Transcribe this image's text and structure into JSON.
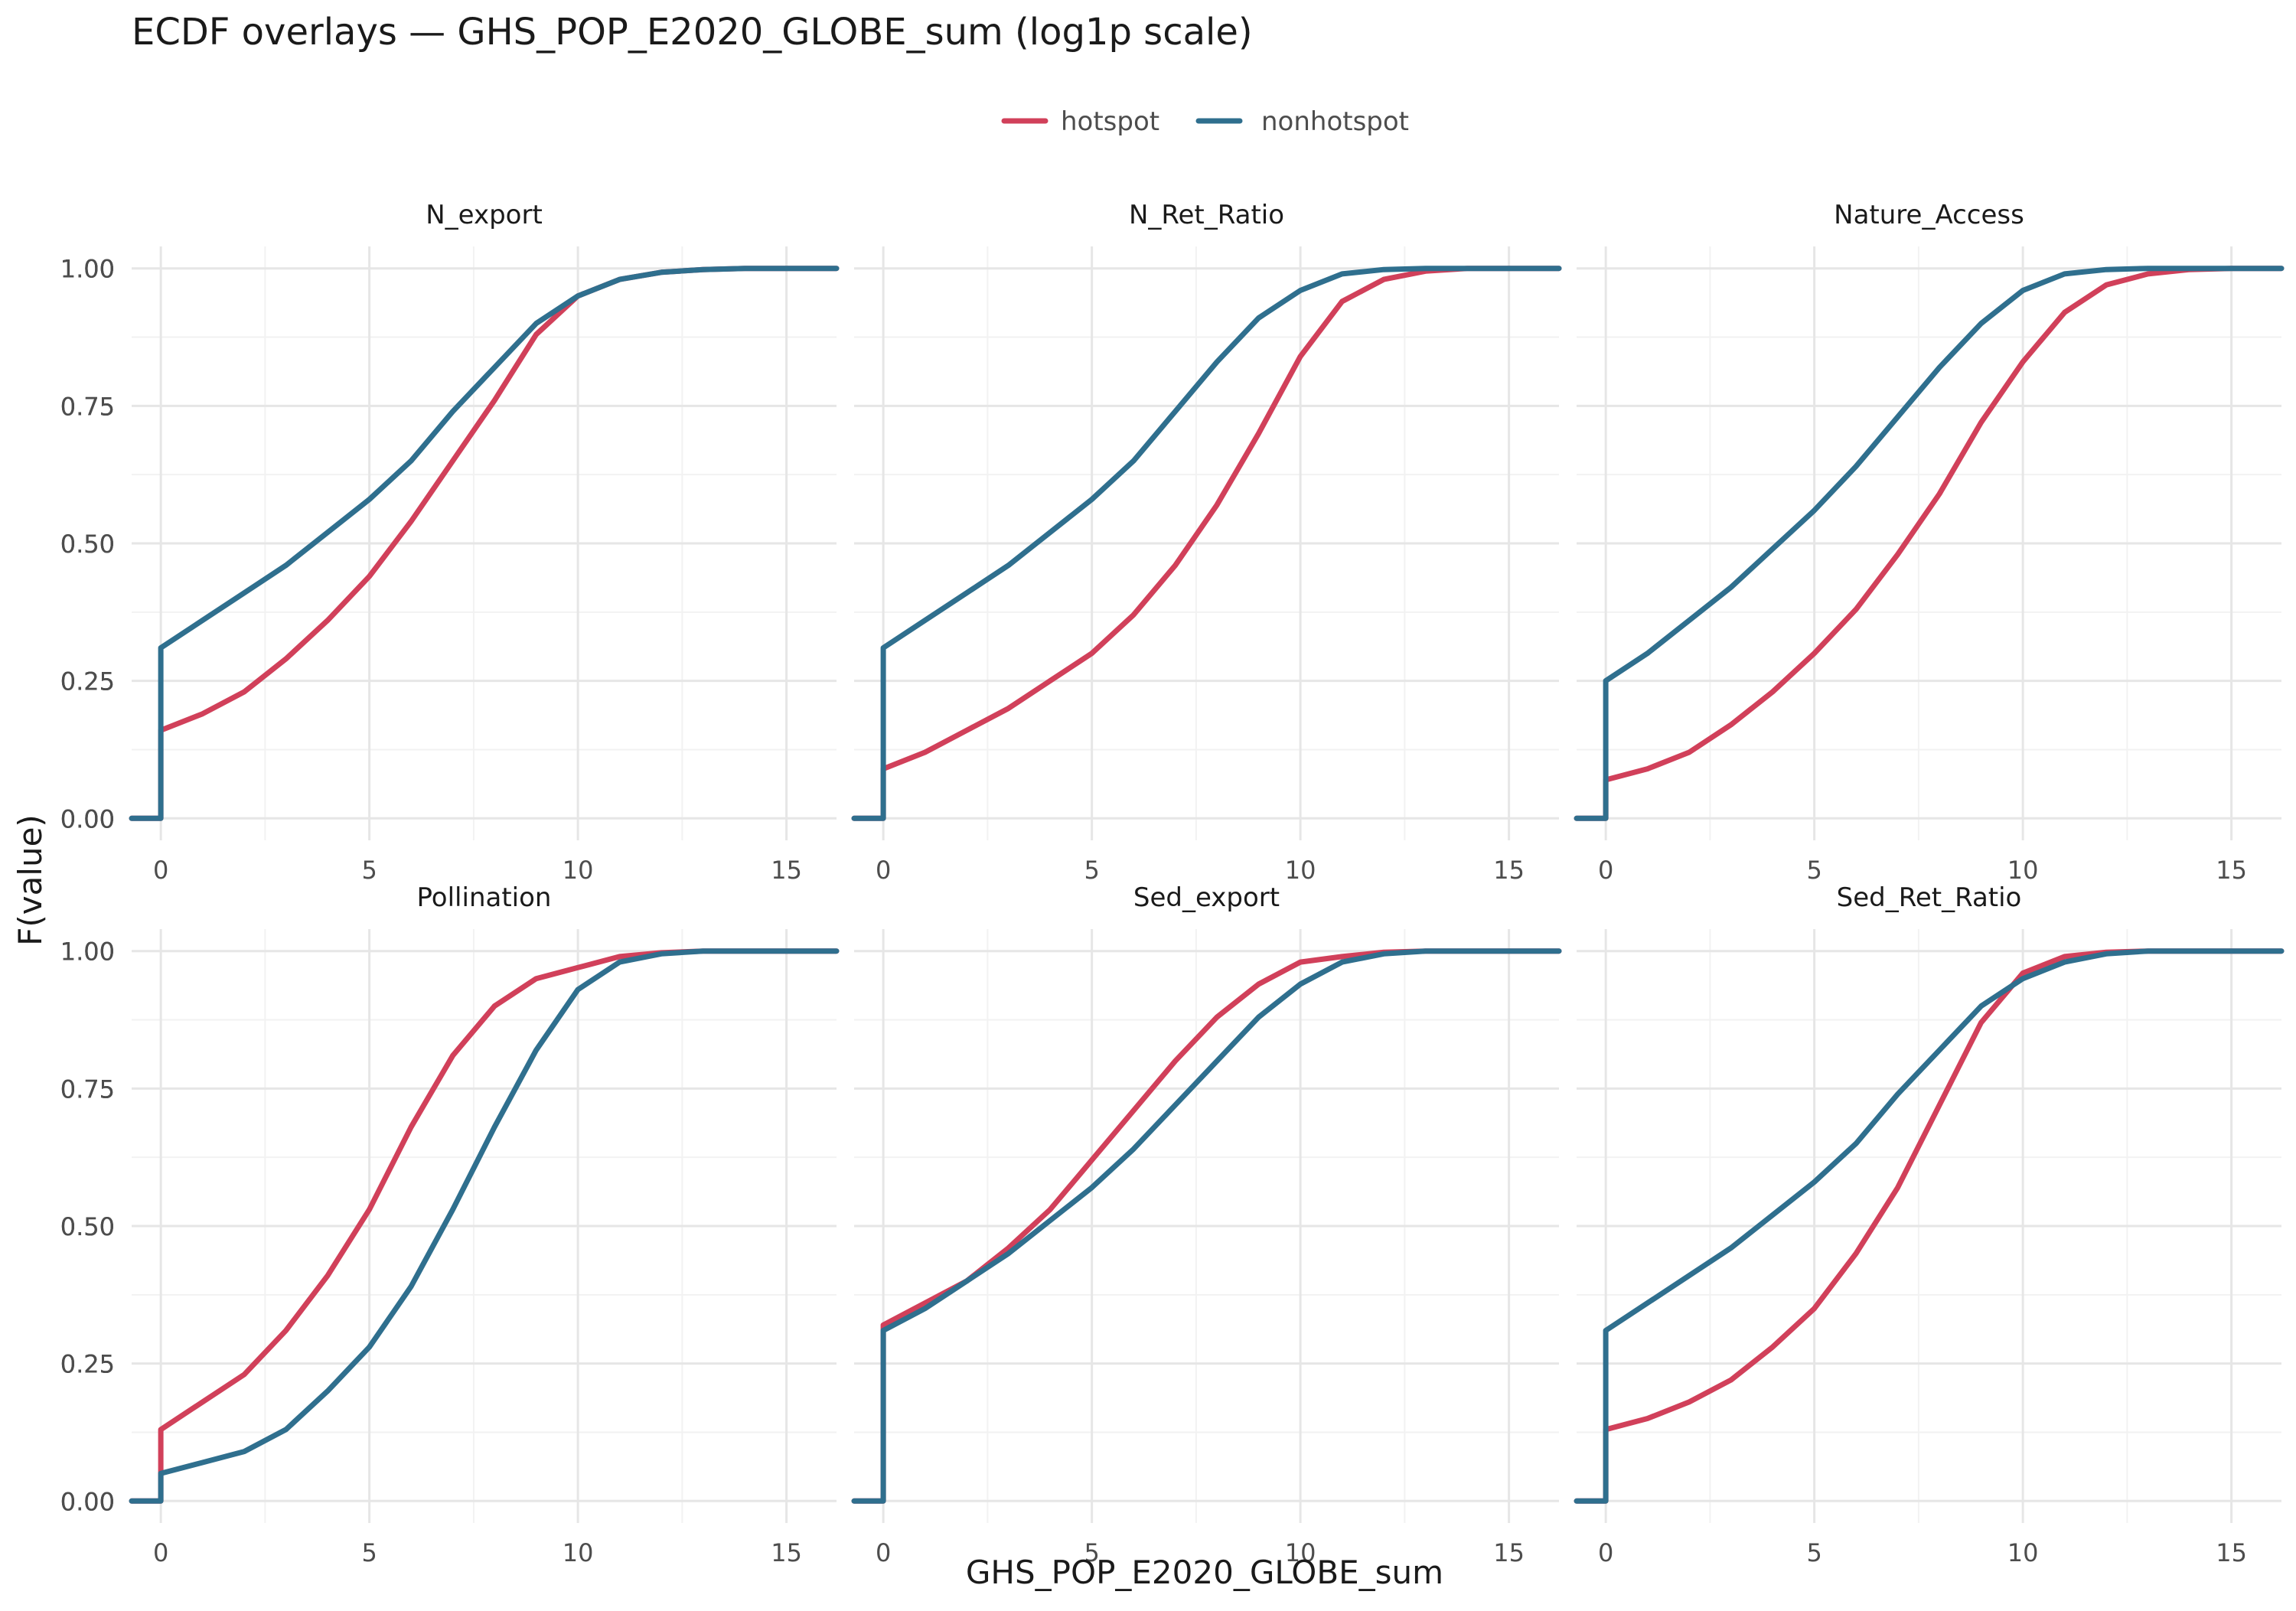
{
  "title": "ECDF overlays — GHS_POP_E2020_GLOBE_sum (log1p scale)",
  "legend": {
    "placement": "top-center",
    "items": [
      {
        "label": "hotspot",
        "color": "#D1405A"
      },
      {
        "label": "nonhotspot",
        "color": "#2F6F8E"
      }
    ]
  },
  "colors": {
    "hotspot": "#D1405A",
    "nonhotspot": "#2F6F8E",
    "grid_major": "#E6E6E6",
    "grid_minor": "#F2F2F2",
    "text": "#4D4D4D",
    "title": "#1A1A1A"
  },
  "axes": {
    "xlabel": "GHS_POP_E2020_GLOBE_sum",
    "ylabel": "F(value)",
    "x_ticks": [
      "0",
      "5",
      "10",
      "15"
    ],
    "y_ticks": [
      "0.00",
      "0.25",
      "0.50",
      "0.75",
      "1.00"
    ]
  },
  "chart_data": [
    {
      "type": "line",
      "panel": "N_export",
      "xlim": [
        -0.7,
        16.2
      ],
      "ylim": [
        -0.04,
        1.04
      ],
      "grid": true,
      "series": [
        {
          "name": "hotspot",
          "color": "#D1405A",
          "x": [
            -0.7,
            0,
            0,
            1,
            2,
            3,
            4,
            5,
            6,
            7,
            8,
            9,
            10,
            11,
            12,
            13,
            14,
            15,
            16.2
          ],
          "y": [
            0,
            0,
            0.16,
            0.19,
            0.23,
            0.29,
            0.36,
            0.44,
            0.54,
            0.65,
            0.76,
            0.88,
            0.95,
            0.98,
            0.993,
            0.998,
            1,
            1,
            1
          ]
        },
        {
          "name": "nonhotspot",
          "color": "#2F6F8E",
          "x": [
            -0.7,
            0,
            0,
            1,
            2,
            3,
            4,
            5,
            6,
            7,
            8,
            9,
            10,
            11,
            12,
            13,
            14,
            15,
            16.2
          ],
          "y": [
            0,
            0,
            0.31,
            0.36,
            0.41,
            0.46,
            0.52,
            0.58,
            0.65,
            0.74,
            0.82,
            0.9,
            0.95,
            0.98,
            0.993,
            0.998,
            1,
            1,
            1
          ]
        }
      ]
    },
    {
      "type": "line",
      "panel": "N_Ret_Ratio",
      "xlim": [
        -0.7,
        16.2
      ],
      "ylim": [
        -0.04,
        1.04
      ],
      "grid": true,
      "series": [
        {
          "name": "hotspot",
          "color": "#D1405A",
          "x": [
            -0.7,
            0,
            0,
            1,
            2,
            3,
            4,
            5,
            6,
            7,
            8,
            9,
            10,
            11,
            12,
            13,
            14,
            15,
            16.2
          ],
          "y": [
            0,
            0,
            0.09,
            0.12,
            0.16,
            0.2,
            0.25,
            0.3,
            0.37,
            0.46,
            0.57,
            0.7,
            0.84,
            0.94,
            0.98,
            0.995,
            1,
            1,
            1
          ]
        },
        {
          "name": "nonhotspot",
          "color": "#2F6F8E",
          "x": [
            -0.7,
            0,
            0,
            1,
            2,
            3,
            4,
            5,
            6,
            7,
            8,
            9,
            10,
            11,
            12,
            13,
            14,
            15,
            16.2
          ],
          "y": [
            0,
            0,
            0.31,
            0.36,
            0.41,
            0.46,
            0.52,
            0.58,
            0.65,
            0.74,
            0.83,
            0.91,
            0.96,
            0.99,
            0.998,
            1,
            1,
            1,
            1
          ]
        }
      ]
    },
    {
      "type": "line",
      "panel": "Nature_Access",
      "xlim": [
        -0.7,
        16.2
      ],
      "ylim": [
        -0.04,
        1.04
      ],
      "grid": true,
      "series": [
        {
          "name": "hotspot",
          "color": "#D1405A",
          "x": [
            -0.7,
            0,
            0,
            1,
            2,
            3,
            4,
            5,
            6,
            7,
            8,
            9,
            10,
            11,
            12,
            13,
            14,
            15,
            16.2
          ],
          "y": [
            0,
            0,
            0.07,
            0.09,
            0.12,
            0.17,
            0.23,
            0.3,
            0.38,
            0.48,
            0.59,
            0.72,
            0.83,
            0.92,
            0.97,
            0.99,
            0.998,
            1,
            1
          ]
        },
        {
          "name": "nonhotspot",
          "color": "#2F6F8E",
          "x": [
            -0.7,
            0,
            0,
            1,
            2,
            3,
            4,
            5,
            6,
            7,
            8,
            9,
            10,
            11,
            12,
            13,
            14,
            15,
            16.2
          ],
          "y": [
            0,
            0,
            0.25,
            0.3,
            0.36,
            0.42,
            0.49,
            0.56,
            0.64,
            0.73,
            0.82,
            0.9,
            0.96,
            0.99,
            0.998,
            1,
            1,
            1,
            1
          ]
        }
      ]
    },
    {
      "type": "line",
      "panel": "Pollination",
      "xlim": [
        -0.7,
        16.2
      ],
      "ylim": [
        -0.04,
        1.04
      ],
      "grid": true,
      "series": [
        {
          "name": "hotspot",
          "color": "#D1405A",
          "x": [
            -0.7,
            0,
            0,
            1,
            2,
            3,
            4,
            5,
            6,
            7,
            8,
            9,
            10,
            11,
            12,
            13,
            14,
            15,
            16.2
          ],
          "y": [
            0,
            0,
            0.13,
            0.18,
            0.23,
            0.31,
            0.41,
            0.53,
            0.68,
            0.81,
            0.9,
            0.95,
            0.97,
            0.99,
            0.997,
            1,
            1,
            1,
            1
          ]
        },
        {
          "name": "nonhotspot",
          "color": "#2F6F8E",
          "x": [
            -0.7,
            0,
            0,
            1,
            2,
            3,
            4,
            5,
            6,
            7,
            8,
            9,
            10,
            11,
            12,
            13,
            14,
            15,
            16.2
          ],
          "y": [
            0,
            0,
            0.05,
            0.07,
            0.09,
            0.13,
            0.2,
            0.28,
            0.39,
            0.53,
            0.68,
            0.82,
            0.93,
            0.98,
            0.995,
            1,
            1,
            1,
            1
          ]
        }
      ]
    },
    {
      "type": "line",
      "panel": "Sed_export",
      "xlim": [
        -0.7,
        16.2
      ],
      "ylim": [
        -0.04,
        1.04
      ],
      "grid": true,
      "series": [
        {
          "name": "hotspot",
          "color": "#D1405A",
          "x": [
            -0.7,
            0,
            0,
            1,
            2,
            3,
            4,
            5,
            6,
            7,
            8,
            9,
            10,
            11,
            12,
            13,
            14,
            15,
            16.2
          ],
          "y": [
            0,
            0,
            0.32,
            0.36,
            0.4,
            0.46,
            0.53,
            0.62,
            0.71,
            0.8,
            0.88,
            0.94,
            0.98,
            0.99,
            0.998,
            1,
            1,
            1,
            1
          ]
        },
        {
          "name": "nonhotspot",
          "color": "#2F6F8E",
          "x": [
            -0.7,
            0,
            0,
            1,
            2,
            3,
            4,
            5,
            6,
            7,
            8,
            9,
            10,
            11,
            12,
            13,
            14,
            15,
            16.2
          ],
          "y": [
            0,
            0,
            0.31,
            0.35,
            0.4,
            0.45,
            0.51,
            0.57,
            0.64,
            0.72,
            0.8,
            0.88,
            0.94,
            0.98,
            0.995,
            1,
            1,
            1,
            1
          ]
        }
      ]
    },
    {
      "type": "line",
      "panel": "Sed_Ret_Ratio",
      "xlim": [
        -0.7,
        16.2
      ],
      "ylim": [
        -0.04,
        1.04
      ],
      "grid": true,
      "series": [
        {
          "name": "hotspot",
          "color": "#D1405A",
          "x": [
            -0.7,
            0,
            0,
            1,
            2,
            3,
            4,
            5,
            6,
            7,
            8,
            9,
            10,
            11,
            12,
            13,
            14,
            15,
            16.2
          ],
          "y": [
            0,
            0,
            0.13,
            0.15,
            0.18,
            0.22,
            0.28,
            0.35,
            0.45,
            0.57,
            0.72,
            0.87,
            0.96,
            0.99,
            0.998,
            1,
            1,
            1,
            1
          ]
        },
        {
          "name": "nonhotspot",
          "color": "#2F6F8E",
          "x": [
            -0.7,
            0,
            0,
            1,
            2,
            3,
            4,
            5,
            6,
            7,
            8,
            9,
            10,
            11,
            12,
            13,
            14,
            15,
            16.2
          ],
          "y": [
            0,
            0,
            0.31,
            0.36,
            0.41,
            0.46,
            0.52,
            0.58,
            0.65,
            0.74,
            0.82,
            0.9,
            0.95,
            0.98,
            0.995,
            1,
            1,
            1,
            1
          ]
        }
      ]
    }
  ]
}
